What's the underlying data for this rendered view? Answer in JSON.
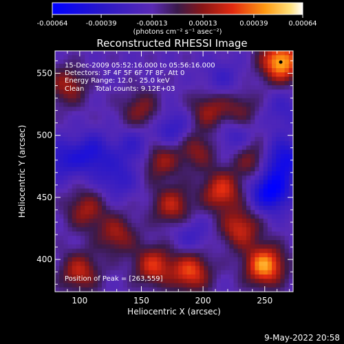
{
  "chart_data": {
    "type": "heatmap",
    "title": "Reconstructed RHESSI Image",
    "xlabel": "Heliocentric X (arcsec)",
    "ylabel": "Heliocentric Y (arcsec)",
    "xlim": [
      80,
      273
    ],
    "ylim": [
      374,
      568
    ],
    "x_ticks": [
      100,
      150,
      200,
      250
    ],
    "y_ticks": [
      400,
      450,
      500,
      550
    ],
    "colorbar": {
      "ticks": [
        "-0.00064",
        "-0.00039",
        "-0.00013",
        "0.00013",
        "0.00039",
        "0.00064"
      ],
      "unit_label": "(photons cm⁻² s⁻¹ asec⁻²)",
      "range": [
        -0.00064,
        0.00064
      ]
    },
    "annotations": [
      "15-Dec-2009 05:52:16.000 to 05:56:16.000",
      "Detectors: 3F 4F 5F 6F 7F 8F, Att 0",
      "Energy Range: 12.0 - 25.0 keV",
      "Clean     Total counts: 9.12E+03"
    ],
    "peak_label": "Position of Peak = [263,559]",
    "peak_position": [
      263,
      559
    ],
    "features": [
      {
        "x": 263,
        "y": 559,
        "value": 0.00064
      },
      {
        "x": 250,
        "y": 395,
        "value": 0.0006
      },
      {
        "x": 190,
        "y": 390,
        "value": 0.00045
      },
      {
        "x": 160,
        "y": 395,
        "value": 0.0004
      },
      {
        "x": 230,
        "y": 425,
        "value": 0.00038
      },
      {
        "x": 130,
        "y": 420,
        "value": 0.0003
      },
      {
        "x": 100,
        "y": 390,
        "value": 0.00035
      },
      {
        "x": 105,
        "y": 440,
        "value": 0.0003
      },
      {
        "x": 215,
        "y": 455,
        "value": 0.00042
      },
      {
        "x": 175,
        "y": 443,
        "value": 0.00035
      },
      {
        "x": 165,
        "y": 480,
        "value": 0.0003
      },
      {
        "x": 195,
        "y": 488,
        "value": 0.00026
      },
      {
        "x": 205,
        "y": 520,
        "value": 0.00028
      },
      {
        "x": 150,
        "y": 520,
        "value": 0.00026
      },
      {
        "x": 230,
        "y": 520,
        "value": 0.00022
      },
      {
        "x": 90,
        "y": 540,
        "value": 0.0003
      },
      {
        "x": 240,
        "y": 480,
        "value": 0.00026
      },
      {
        "x": 255,
        "y": 455,
        "value": -0.0005
      },
      {
        "x": 265,
        "y": 480,
        "value": -0.0004
      },
      {
        "x": 110,
        "y": 485,
        "value": -0.0003
      },
      {
        "x": 85,
        "y": 480,
        "value": -0.00025
      },
      {
        "x": 145,
        "y": 490,
        "value": -0.0002
      },
      {
        "x": 130,
        "y": 465,
        "value": -0.0002
      },
      {
        "x": 175,
        "y": 505,
        "value": -0.00022
      },
      {
        "x": 225,
        "y": 500,
        "value": -0.00018
      },
      {
        "x": 190,
        "y": 420,
        "value": -0.00015
      },
      {
        "x": 215,
        "y": 545,
        "value": -0.00015
      },
      {
        "x": 265,
        "y": 520,
        "value": -0.00015
      }
    ]
  },
  "timestamp": "9-May-2022 20:58"
}
